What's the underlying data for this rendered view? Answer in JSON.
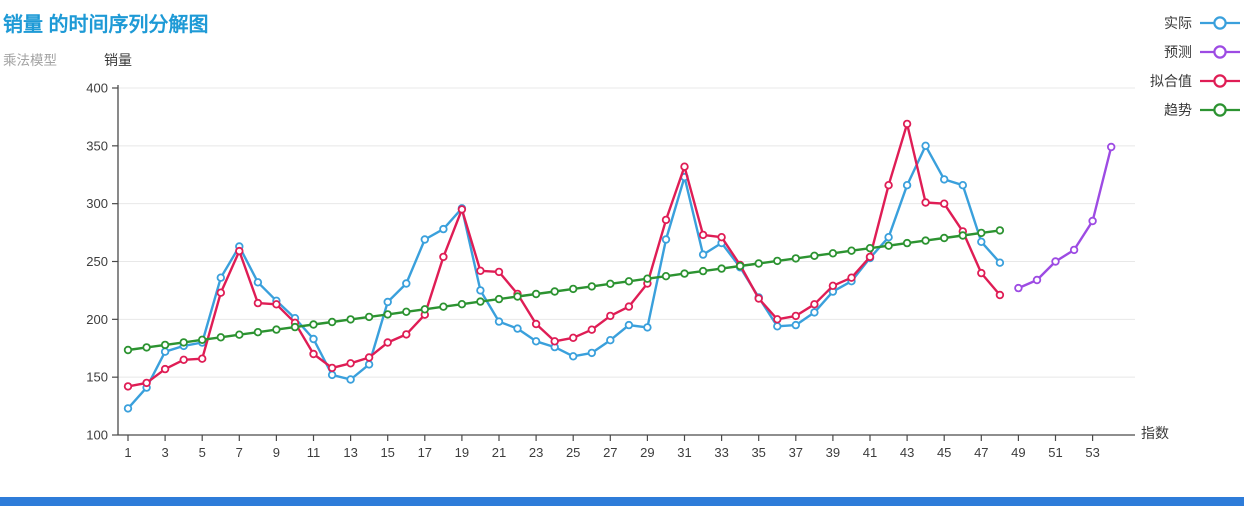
{
  "header": {
    "title_color": "#1E9AD6",
    "subtitle_color": "#A3A3A3"
  },
  "page": {
    "bottom_bar_color": "#2E7CD9"
  },
  "chart_data": {
    "type": "line",
    "title": "销量 的时间序列分解图",
    "subtitle": "乘法模型",
    "xlabel": "指数",
    "ylabel": "销量",
    "ylim": [
      100,
      400
    ],
    "y_ticks": [
      100,
      150,
      200,
      250,
      300,
      350,
      400
    ],
    "x_ticks": [
      1,
      3,
      5,
      7,
      9,
      11,
      13,
      15,
      17,
      19,
      21,
      23,
      25,
      27,
      29,
      31,
      33,
      35,
      37,
      39,
      41,
      43,
      45,
      47,
      49,
      51,
      53
    ],
    "grid": "horizontal",
    "legend_position": "top-right",
    "series": [
      {
        "name": "实际",
        "color": "#3AA0DC",
        "x_start": 1,
        "values": [
          123,
          141,
          172,
          177,
          180,
          236,
          263,
          232,
          216,
          201,
          183,
          152,
          148,
          161,
          215,
          231,
          269,
          278,
          296,
          225,
          198,
          192,
          181,
          176,
          168,
          171,
          182,
          195,
          193,
          269,
          323,
          256,
          266,
          245,
          219,
          194,
          195,
          206,
          224,
          233,
          253,
          271,
          316,
          350,
          321,
          316,
          267,
          249
        ]
      },
      {
        "name": "预测",
        "color": "#9D4BE3",
        "x_start": 49,
        "values": [
          227,
          234,
          250,
          260,
          285,
          349
        ]
      },
      {
        "name": "拟合值",
        "color": "#DF1D55",
        "x_start": 1,
        "values": [
          142,
          145,
          157,
          165,
          166,
          223,
          259,
          214,
          213,
          197,
          170,
          158,
          162,
          167,
          180,
          187,
          204,
          254,
          295,
          242,
          241,
          222,
          196,
          181,
          184,
          191,
          203,
          211,
          231,
          286,
          332,
          273,
          271,
          247,
          218,
          200,
          203,
          213,
          229,
          236,
          254,
          316,
          369,
          301,
          300,
          276,
          240,
          221
        ]
      },
      {
        "name": "趋势",
        "color": "#2C9331",
        "x_start": 1,
        "values": [
          173.5,
          175.7,
          177.9,
          180.1,
          182.3,
          184.5,
          186.7,
          188.9,
          191.1,
          193.3,
          195.5,
          197.7,
          199.9,
          202.1,
          204.3,
          206.5,
          208.7,
          210.9,
          213.1,
          215.3,
          217.5,
          219.7,
          221.9,
          224.1,
          226.3,
          228.5,
          230.7,
          232.9,
          235.1,
          237.3,
          239.5,
          241.7,
          243.9,
          246.1,
          248.3,
          250.5,
          252.7,
          254.9,
          257.1,
          259.3,
          261.5,
          263.7,
          265.9,
          268.1,
          270.3,
          272.5,
          274.7,
          276.9
        ]
      }
    ]
  },
  "legend": {
    "items": [
      {
        "label": "实际",
        "color": "#3AA0DC"
      },
      {
        "label": "预测",
        "color": "#9D4BE3"
      },
      {
        "label": "拟合值",
        "color": "#DF1D55"
      },
      {
        "label": "趋势",
        "color": "#2C9331"
      }
    ]
  }
}
